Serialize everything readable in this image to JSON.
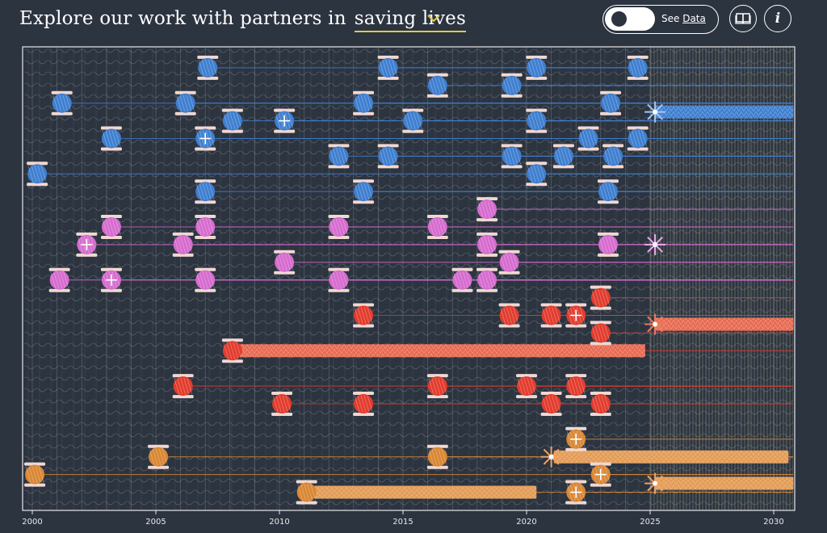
{
  "header": {
    "prefix": "Explore our work with partners in",
    "topic": "saving lives",
    "toggle_prefix": "See ",
    "toggle_link": "Data",
    "book_button": "book-icon",
    "info_label": "i"
  },
  "colors": {
    "background": "#2c3440",
    "accent": "#e2c84a",
    "blue": "#3f7fd0",
    "pink": "#d66ccf",
    "red": "#e23c2e",
    "orange": "#d98735"
  },
  "chart_data": {
    "type": "scatter",
    "title": "Explore our work with partners in saving lives",
    "x_range": [
      2000,
      2031
    ],
    "x_ticks": [
      "2000",
      "2005",
      "2010",
      "2015",
      "2020",
      "2025",
      "2030"
    ],
    "projection_start": 2025,
    "series": [
      {
        "name": "blue",
        "color": "#3f7fd0",
        "points": [
          {
            "x": 2000.2,
            "row": 7
          },
          {
            "x": 2001.2,
            "row": 3
          },
          {
            "x": 2003.2,
            "row": 5
          },
          {
            "x": 2006.2,
            "row": 3
          },
          {
            "x": 2007.1,
            "row": 1
          },
          {
            "x": 2007.0,
            "row": 5,
            "star": true
          },
          {
            "x": 2007.0,
            "row": 8
          },
          {
            "x": 2008.1,
            "row": 4
          },
          {
            "x": 2010.2,
            "row": 4,
            "star": true
          },
          {
            "x": 2012.4,
            "row": 6
          },
          {
            "x": 2013.4,
            "row": 3
          },
          {
            "x": 2013.4,
            "row": 8
          },
          {
            "x": 2014.4,
            "row": 1
          },
          {
            "x": 2014.4,
            "row": 6
          },
          {
            "x": 2015.4,
            "row": 4
          },
          {
            "x": 2016.4,
            "row": 2
          },
          {
            "x": 2019.4,
            "row": 2
          },
          {
            "x": 2019.4,
            "row": 6
          },
          {
            "x": 2020.4,
            "row": 1
          },
          {
            "x": 2020.4,
            "row": 4
          },
          {
            "x": 2020.4,
            "row": 7
          },
          {
            "x": 2021.5,
            "row": 6
          },
          {
            "x": 2022.5,
            "row": 5
          },
          {
            "x": 2023.4,
            "row": 3
          },
          {
            "x": 2023.5,
            "row": 6
          },
          {
            "x": 2023.3,
            "row": 8
          },
          {
            "x": 2024.5,
            "row": 1
          },
          {
            "x": 2024.5,
            "row": 5
          }
        ]
      },
      {
        "name": "pink",
        "color": "#d66ccf",
        "points": [
          {
            "x": 2001.1,
            "row": 13
          },
          {
            "x": 2002.2,
            "row": 11,
            "star": true
          },
          {
            "x": 2003.2,
            "row": 10
          },
          {
            "x": 2003.2,
            "row": 13,
            "star": true
          },
          {
            "x": 2006.1,
            "row": 11
          },
          {
            "x": 2007.0,
            "row": 10
          },
          {
            "x": 2007.0,
            "row": 13
          },
          {
            "x": 2010.2,
            "row": 12
          },
          {
            "x": 2012.4,
            "row": 10
          },
          {
            "x": 2012.4,
            "row": 13
          },
          {
            "x": 2016.4,
            "row": 10
          },
          {
            "x": 2017.4,
            "row": 13
          },
          {
            "x": 2018.4,
            "row": 9
          },
          {
            "x": 2018.4,
            "row": 11
          },
          {
            "x": 2018.4,
            "row": 13
          },
          {
            "x": 2019.3,
            "row": 12
          },
          {
            "x": 2023.3,
            "row": 11
          }
        ]
      },
      {
        "name": "red",
        "color": "#e23c2e",
        "points": [
          {
            "x": 2006.1,
            "row": 19
          },
          {
            "x": 2008.1,
            "row": 17
          },
          {
            "x": 2010.1,
            "row": 20
          },
          {
            "x": 2013.4,
            "row": 15
          },
          {
            "x": 2013.4,
            "row": 20
          },
          {
            "x": 2016.4,
            "row": 19
          },
          {
            "x": 2019.3,
            "row": 15
          },
          {
            "x": 2020.0,
            "row": 19
          },
          {
            "x": 2021.0,
            "row": 15
          },
          {
            "x": 2021.0,
            "row": 20
          },
          {
            "x": 2022.0,
            "row": 15,
            "star": true
          },
          {
            "x": 2022.0,
            "row": 19
          },
          {
            "x": 2023.0,
            "row": 14
          },
          {
            "x": 2023.0,
            "row": 16
          },
          {
            "x": 2023.0,
            "row": 20
          }
        ]
      },
      {
        "name": "orange",
        "color": "#d98735",
        "points": [
          {
            "x": 2000.1,
            "row": 24
          },
          {
            "x": 2005.1,
            "row": 23
          },
          {
            "x": 2011.1,
            "row": 25
          },
          {
            "x": 2016.4,
            "row": 23
          },
          {
            "x": 2022.0,
            "row": 22,
            "star": true
          },
          {
            "x": 2023.0,
            "row": 24,
            "star": true
          },
          {
            "x": 2022.0,
            "row": 25,
            "star": true
          }
        ]
      }
    ],
    "bands": [
      {
        "color": "#3f7fd0",
        "row": 3.5,
        "start": 2025.2,
        "end": 2030.8
      },
      {
        "color": "#e86a52",
        "row": 15.5,
        "start": 2025.2,
        "end": 2030.8
      },
      {
        "color": "#e86a52",
        "row": 17,
        "start": 2008.3,
        "end": 2024.8
      },
      {
        "color": "#e39b55",
        "row": 23,
        "start": 2021.1,
        "end": 2030.6
      },
      {
        "color": "#e39b55",
        "row": 24.5,
        "start": 2025.2,
        "end": 2030.8
      },
      {
        "color": "#e39b55",
        "row": 25,
        "start": 2011.4,
        "end": 2020.4
      }
    ],
    "starbursts": [
      {
        "color": "#9fc8f5",
        "row": 3.5,
        "x": 2025.2
      },
      {
        "color": "#f1a9ee",
        "row": 11,
        "x": 2025.2
      },
      {
        "color": "#f07a5a",
        "row": 15.5,
        "x": 2025.2
      },
      {
        "color": "#f0a263",
        "row": 23,
        "x": 2021.0
      },
      {
        "color": "#f0a263",
        "row": 24.5,
        "x": 2025.2
      }
    ]
  }
}
